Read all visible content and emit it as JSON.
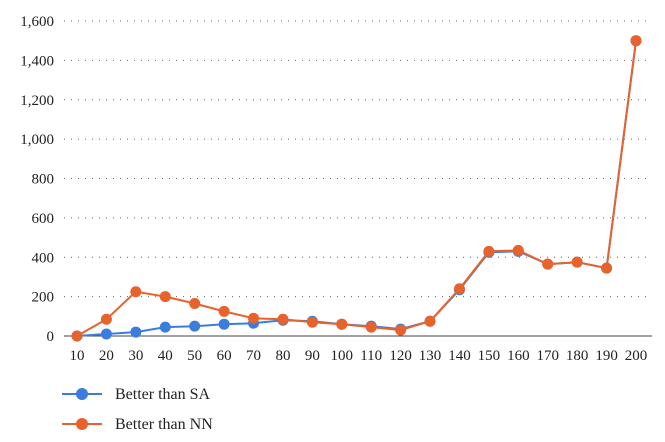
{
  "chart_data": {
    "type": "line",
    "title": "",
    "xlabel": "",
    "ylabel": "",
    "x": [
      10,
      20,
      30,
      40,
      50,
      60,
      70,
      80,
      90,
      100,
      110,
      120,
      130,
      140,
      150,
      160,
      170,
      180,
      190,
      200
    ],
    "x_tick_labels": [
      "10",
      "20",
      "30",
      "40",
      "50",
      "60",
      "70",
      "80",
      "90",
      "100",
      "110",
      "120",
      "130",
      "140",
      "150",
      "160",
      "170",
      "180",
      "190",
      "200"
    ],
    "ylim": [
      0,
      1600
    ],
    "y_ticks": [
      0,
      200,
      400,
      600,
      800,
      1000,
      1200,
      1400,
      1600
    ],
    "y_tick_labels": [
      "0",
      "200",
      "400",
      "600",
      "800",
      "1,000",
      "1,200",
      "1,400",
      "1,600"
    ],
    "grid": "horizontal-dotted",
    "legend_position": "bottom-left",
    "series": [
      {
        "name": "Better than SA",
        "color": "#3b7ddd",
        "values": [
          0,
          10,
          20,
          45,
          50,
          60,
          65,
          80,
          75,
          60,
          50,
          35,
          75,
          235,
          425,
          430,
          365,
          375,
          345,
          1500
        ]
      },
      {
        "name": "Better than NN",
        "color": "#e8622c",
        "values": [
          0,
          85,
          225,
          200,
          165,
          125,
          90,
          85,
          70,
          60,
          45,
          30,
          75,
          240,
          430,
          435,
          365,
          375,
          345,
          1500
        ]
      }
    ]
  }
}
